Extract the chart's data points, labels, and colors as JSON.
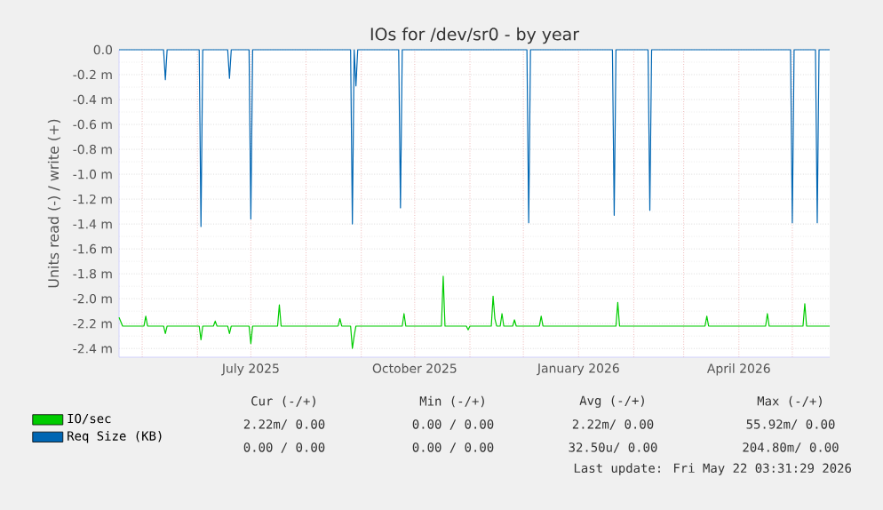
{
  "chart_data": {
    "type": "line",
    "title": "IOs for /dev/sr0 - by year",
    "ylabel": "Units read (-) / write (+)",
    "xlim": [
      "2025-04-18",
      "2026-05-22"
    ],
    "xticks": [
      {
        "value": "2025-05-01",
        "label": null
      },
      {
        "value": "2025-06-01",
        "label": null
      },
      {
        "value": "2025-07-01",
        "label": "July 2025"
      },
      {
        "value": "2025-08-01",
        "label": null
      },
      {
        "value": "2025-09-01",
        "label": null
      },
      {
        "value": "2025-10-01",
        "label": "October 2025"
      },
      {
        "value": "2025-11-01",
        "label": null
      },
      {
        "value": "2025-12-01",
        "label": null
      },
      {
        "value": "2026-01-01",
        "label": "January 2026"
      },
      {
        "value": "2026-02-01",
        "label": null
      },
      {
        "value": "2026-03-01",
        "label": null
      },
      {
        "value": "2026-04-01",
        "label": "April 2026"
      },
      {
        "value": "2026-05-01",
        "label": null
      }
    ],
    "ylim": [
      -2.47,
      0.0
    ],
    "yticks": [
      {
        "value": 0.0,
        "label": "0.0"
      },
      {
        "value": -0.2,
        "label": "-0.2 m"
      },
      {
        "value": -0.4,
        "label": "-0.4 m"
      },
      {
        "value": -0.6,
        "label": "-0.6 m"
      },
      {
        "value": -0.8,
        "label": "-0.8 m"
      },
      {
        "value": -1.0,
        "label": "-1.0 m"
      },
      {
        "value": -1.2,
        "label": "-1.2 m"
      },
      {
        "value": -1.4,
        "label": "-1.4 m"
      },
      {
        "value": -1.6,
        "label": "-1.6 m"
      },
      {
        "value": -1.8,
        "label": "-1.8 m"
      },
      {
        "value": -2.0,
        "label": "-2.0 m"
      },
      {
        "value": -2.2,
        "label": "-2.2 m"
      },
      {
        "value": -2.4,
        "label": "-2.4 m"
      }
    ],
    "grid": true,
    "legend": "bottom",
    "series": [
      {
        "name": "IO/sec",
        "color": "#00cc00",
        "x": [
          "2025-04-18",
          "2025-04-20",
          "2025-05-02",
          "2025-05-03",
          "2025-05-04",
          "2025-05-13",
          "2025-05-14",
          "2025-05-15",
          "2025-06-02",
          "2025-06-03",
          "2025-06-04",
          "2025-06-10",
          "2025-06-11",
          "2025-06-12",
          "2025-06-18",
          "2025-06-19",
          "2025-06-20",
          "2025-06-30",
          "2025-07-01",
          "2025-07-02",
          "2025-07-16",
          "2025-07-17",
          "2025-07-18",
          "2025-08-19",
          "2025-08-20",
          "2025-08-21",
          "2025-08-26",
          "2025-08-27",
          "2025-08-28",
          "2025-08-29",
          "2025-09-24",
          "2025-09-25",
          "2025-09-26",
          "2025-10-16",
          "2025-10-17",
          "2025-10-18",
          "2025-10-30",
          "2025-10-31",
          "2025-11-01",
          "2025-11-13",
          "2025-11-14",
          "2025-11-15",
          "2025-11-16",
          "2025-11-18",
          "2025-11-19",
          "2025-11-20",
          "2025-11-25",
          "2025-11-26",
          "2025-11-27",
          "2025-12-10",
          "2025-12-11",
          "2025-12-12",
          "2026-01-22",
          "2026-01-23",
          "2026-01-24",
          "2026-03-13",
          "2026-03-14",
          "2026-03-15",
          "2026-04-16",
          "2026-04-17",
          "2026-04-18",
          "2026-05-07",
          "2026-05-08",
          "2026-05-09",
          "2026-05-22"
        ],
        "values": [
          -2.15,
          -2.22,
          -2.22,
          -2.14,
          -2.22,
          -2.22,
          -2.28,
          -2.22,
          -2.22,
          -2.33,
          -2.22,
          -2.22,
          -2.18,
          -2.22,
          -2.22,
          -2.28,
          -2.22,
          -2.22,
          -2.36,
          -2.22,
          -2.22,
          -2.05,
          -2.22,
          -2.22,
          -2.16,
          -2.22,
          -2.22,
          -2.4,
          -2.3,
          -2.22,
          -2.22,
          -2.12,
          -2.22,
          -2.22,
          -1.82,
          -2.22,
          -2.22,
          -2.25,
          -2.22,
          -2.22,
          -1.98,
          -2.16,
          -2.22,
          -2.22,
          -2.12,
          -2.22,
          -2.22,
          -2.17,
          -2.22,
          -2.22,
          -2.14,
          -2.22,
          -2.22,
          -2.03,
          -2.22,
          -2.22,
          -2.14,
          -2.22,
          -2.22,
          -2.12,
          -2.22,
          -2.22,
          -2.04,
          -2.22,
          -2.22
        ]
      },
      {
        "name": "Req Size (KB)",
        "color": "#0066b3",
        "x": [
          "2025-04-18",
          "2025-05-13",
          "2025-05-14",
          "2025-05-15",
          "2025-06-02",
          "2025-06-03",
          "2025-06-04",
          "2025-06-18",
          "2025-06-19",
          "2025-06-20",
          "2025-06-30",
          "2025-07-01",
          "2025-07-02",
          "2025-08-26",
          "2025-08-27",
          "2025-08-28",
          "2025-08-29",
          "2025-08-30",
          "2025-09-22",
          "2025-09-23",
          "2025-09-24",
          "2025-12-03",
          "2025-12-04",
          "2025-12-05",
          "2026-01-20",
          "2026-01-21",
          "2026-01-22",
          "2026-02-09",
          "2026-02-10",
          "2026-02-11",
          "2026-04-30",
          "2026-05-01",
          "2026-05-02",
          "2026-05-14",
          "2026-05-15",
          "2026-05-16",
          "2026-05-22"
        ],
        "values": [
          0.0,
          0.0,
          -0.24,
          0.0,
          0.0,
          -1.42,
          0.0,
          0.0,
          -0.23,
          0.0,
          0.0,
          -1.36,
          0.0,
          0.0,
          -1.4,
          0.0,
          -0.29,
          0.0,
          0.0,
          -1.27,
          0.0,
          0.0,
          -1.39,
          0.0,
          0.0,
          -1.33,
          0.0,
          0.0,
          -1.29,
          0.0,
          0.0,
          -1.39,
          0.0,
          0.0,
          -1.39,
          0.0,
          0.0
        ]
      }
    ],
    "annotations": [
      "Cur (-/+)",
      "Min (-/+)",
      "Avg (-/+)",
      "Max (-/+)",
      "2.22m/ 0.00",
      "0.00 / 0.00",
      "2.22m/ 0.00",
      "55.92m/ 0.00",
      "0.00 / 0.00",
      "0.00 / 0.00",
      "32.50u/ 0.00",
      "204.80m/ 0.00",
      "Last update: Fri May 22 03:31:29 2026"
    ]
  }
}
